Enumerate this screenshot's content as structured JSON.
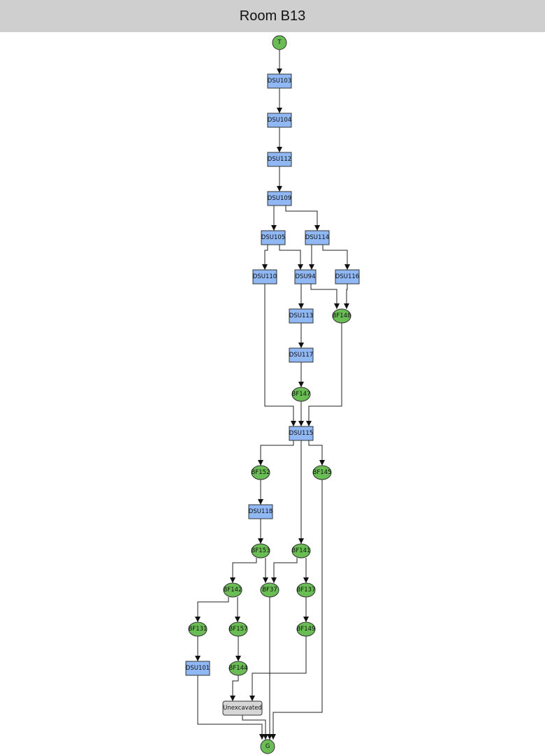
{
  "header": {
    "title": "Room B13"
  },
  "colors": {
    "context": "#8fb8f5",
    "feature": "#6abd55",
    "unexcavated": "#d6d6d6",
    "edge": "#222222"
  },
  "nodes": [
    {
      "id": "T",
      "label": "T",
      "kind": "feature"
    },
    {
      "id": "DSU103",
      "label": "DSU103",
      "kind": "context"
    },
    {
      "id": "DSU104",
      "label": "DSU104",
      "kind": "context"
    },
    {
      "id": "DSU112",
      "label": "DSU112",
      "kind": "context"
    },
    {
      "id": "DSU109",
      "label": "DSU109",
      "kind": "context"
    },
    {
      "id": "DSU105",
      "label": "DSU105",
      "kind": "context"
    },
    {
      "id": "DSU114",
      "label": "DSU114",
      "kind": "context"
    },
    {
      "id": "DSU110",
      "label": "DSU110",
      "kind": "context"
    },
    {
      "id": "DSU94",
      "label": "DSU94",
      "kind": "context"
    },
    {
      "id": "DSU116",
      "label": "DSU116",
      "kind": "context"
    },
    {
      "id": "DSU113",
      "label": "DSU113",
      "kind": "context"
    },
    {
      "id": "BF148",
      "label": "BF148",
      "kind": "feature"
    },
    {
      "id": "DSU117",
      "label": "DSU117",
      "kind": "context"
    },
    {
      "id": "BF147",
      "label": "BF147",
      "kind": "feature"
    },
    {
      "id": "DSU115",
      "label": "DSU115",
      "kind": "context"
    },
    {
      "id": "BF152",
      "label": "BF152",
      "kind": "feature"
    },
    {
      "id": "BF145",
      "label": "BF145",
      "kind": "feature"
    },
    {
      "id": "DSU118",
      "label": "DSU118",
      "kind": "context"
    },
    {
      "id": "BF153",
      "label": "BF153",
      "kind": "feature"
    },
    {
      "id": "BF141",
      "label": "BF141",
      "kind": "feature"
    },
    {
      "id": "BF142",
      "label": "BF142",
      "kind": "feature"
    },
    {
      "id": "BF37",
      "label": "BF37",
      "kind": "feature"
    },
    {
      "id": "BF137",
      "label": "BF137",
      "kind": "feature"
    },
    {
      "id": "BF131",
      "label": "BF131",
      "kind": "feature"
    },
    {
      "id": "BF157",
      "label": "BF157",
      "kind": "feature"
    },
    {
      "id": "BF149",
      "label": "BF149",
      "kind": "feature"
    },
    {
      "id": "DSU101",
      "label": "DSU101",
      "kind": "context"
    },
    {
      "id": "BF144",
      "label": "BF144",
      "kind": "feature"
    },
    {
      "id": "Unexcavated",
      "label": "Unexcavated",
      "kind": "unexcavated"
    },
    {
      "id": "G",
      "label": "G",
      "kind": "feature"
    }
  ],
  "edges": [
    [
      "T",
      "DSU103"
    ],
    [
      "DSU103",
      "DSU104"
    ],
    [
      "DSU104",
      "DSU112"
    ],
    [
      "DSU112",
      "DSU109"
    ],
    [
      "DSU109",
      "DSU105"
    ],
    [
      "DSU109",
      "DSU114"
    ],
    [
      "DSU105",
      "DSU110"
    ],
    [
      "DSU105",
      "DSU94"
    ],
    [
      "DSU114",
      "DSU94"
    ],
    [
      "DSU114",
      "DSU116"
    ],
    [
      "DSU110",
      "DSU115"
    ],
    [
      "DSU94",
      "DSU113"
    ],
    [
      "DSU94",
      "BF148"
    ],
    [
      "DSU116",
      "BF148"
    ],
    [
      "DSU113",
      "DSU117"
    ],
    [
      "DSU117",
      "BF147"
    ],
    [
      "BF147",
      "DSU115"
    ],
    [
      "BF148",
      "DSU115"
    ],
    [
      "DSU115",
      "BF152"
    ],
    [
      "DSU115",
      "BF141"
    ],
    [
      "DSU115",
      "BF145"
    ],
    [
      "BF152",
      "DSU118"
    ],
    [
      "DSU118",
      "BF153"
    ],
    [
      "BF153",
      "BF142"
    ],
    [
      "BF153",
      "BF37"
    ],
    [
      "BF141",
      "BF37"
    ],
    [
      "BF141",
      "BF137"
    ],
    [
      "BF142",
      "BF131"
    ],
    [
      "BF142",
      "BF157"
    ],
    [
      "BF137",
      "BF149"
    ],
    [
      "BF131",
      "DSU101"
    ],
    [
      "BF157",
      "BF144"
    ],
    [
      "BF144",
      "Unexcavated"
    ],
    [
      "BF149",
      "Unexcavated"
    ],
    [
      "DSU101",
      "G"
    ],
    [
      "Unexcavated",
      "G"
    ],
    [
      "BF37",
      "G"
    ],
    [
      "BF145",
      "G"
    ]
  ]
}
